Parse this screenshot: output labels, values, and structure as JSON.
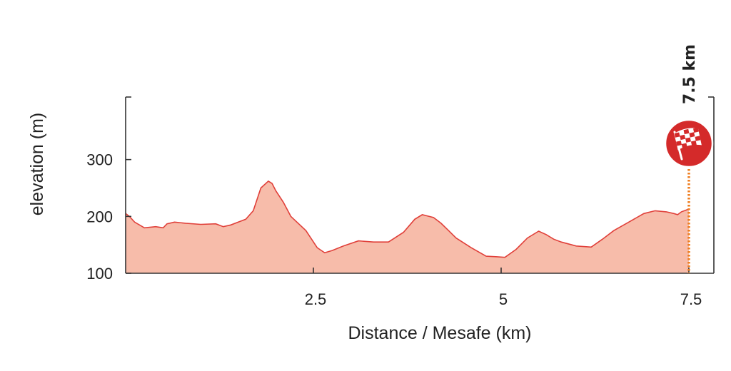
{
  "chart_data": {
    "type": "area",
    "xlabel": "Distance / Mesafe (km)",
    "ylabel": "elevation (m)",
    "xlim": [
      0,
      7.5
    ],
    "ylim": [
      100,
      410
    ],
    "x_ticks": [
      2.5,
      5,
      7.5
    ],
    "x_tick_labels": [
      "2.5",
      "5",
      "7.5"
    ],
    "y_ticks": [
      100,
      200,
      300
    ],
    "y_tick_labels": [
      "100",
      "200",
      "300"
    ],
    "grid": false,
    "fill_color": "#f7bcaa",
    "line_color": "#e0403a",
    "finish": {
      "distance": 7.5,
      "label": "7.5 km",
      "icon": "checkered-flag-icon",
      "marker_color": "#d42a2a",
      "line_color": "#ef7f22"
    },
    "series": [
      {
        "x": [
          0,
          0.05,
          0.12,
          0.25,
          0.4,
          0.5,
          0.55,
          0.65,
          0.8,
          1.0,
          1.2,
          1.3,
          1.4,
          1.5,
          1.6,
          1.7,
          1.8,
          1.9,
          1.95,
          2.0,
          2.1,
          2.2,
          2.4,
          2.55,
          2.65,
          2.75,
          2.9,
          3.1,
          3.3,
          3.5,
          3.7,
          3.85,
          3.95,
          4.1,
          4.2,
          4.3,
          4.4,
          4.6,
          4.8,
          4.95,
          5.05,
          5.2,
          5.35,
          5.5,
          5.6,
          5.7,
          5.8,
          6.0,
          6.2,
          6.35,
          6.5,
          6.7,
          6.9,
          7.05,
          7.2,
          7.3,
          7.35,
          7.4,
          7.5
        ],
        "y": [
          205,
          200,
          190,
          180,
          182,
          180,
          187,
          190,
          188,
          186,
          187,
          182,
          185,
          190,
          195,
          210,
          250,
          262,
          258,
          245,
          225,
          200,
          175,
          145,
          136,
          140,
          148,
          157,
          155,
          155,
          172,
          195,
          203,
          198,
          188,
          175,
          162,
          145,
          130,
          129,
          128,
          142,
          162,
          174,
          168,
          160,
          155,
          148,
          146,
          160,
          175,
          190,
          205,
          210,
          208,
          205,
          203,
          208,
          213
        ]
      }
    ]
  }
}
